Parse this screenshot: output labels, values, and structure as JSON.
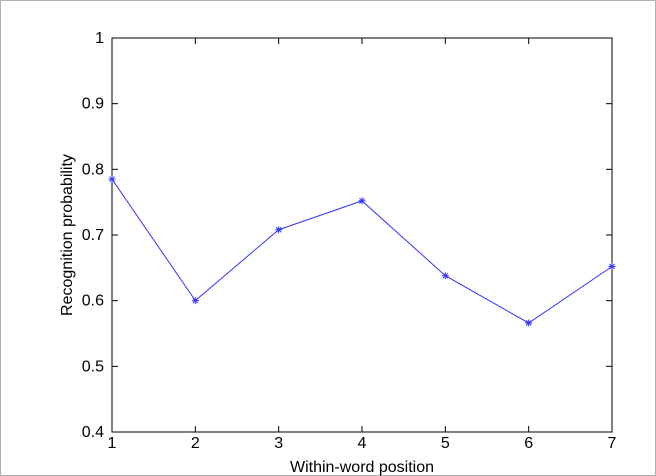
{
  "chart_data": {
    "type": "line",
    "title": "",
    "xlabel": "Within-word position",
    "ylabel": "Recognition probability",
    "x": [
      1,
      2,
      3,
      4,
      5,
      6,
      7
    ],
    "xlim": [
      1,
      7
    ],
    "ylim": [
      0.4,
      1
    ],
    "x_ticks": [
      "1",
      "2",
      "3",
      "4",
      "5",
      "6",
      "7"
    ],
    "y_ticks": [
      "0.4",
      "0.5",
      "0.6",
      "0.7",
      "0.8",
      "0.9",
      "1"
    ],
    "grid": false,
    "marker": "asterisk",
    "series": [
      {
        "values": [
          0.785,
          0.6,
          0.708,
          0.752,
          0.638,
          0.566,
          0.652
        ],
        "color": "#3333ff"
      }
    ]
  }
}
